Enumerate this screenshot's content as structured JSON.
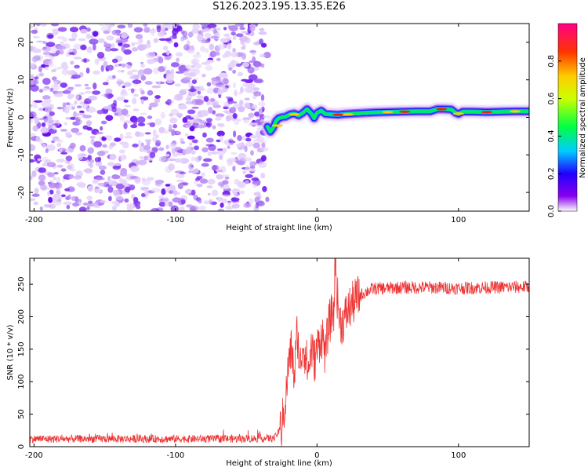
{
  "title": "S126.2023.195.13.35.E26",
  "chart_data": [
    {
      "type": "heatmap",
      "xlabel": "Height of straight line (km)",
      "ylabel": "Frequency (Hz)",
      "xlim": [
        -203,
        150
      ],
      "ylim": [
        -25,
        25
      ],
      "x_ticks": [
        -200,
        -100,
        0,
        100
      ],
      "y_ticks": [
        20,
        10,
        0,
        -10,
        -20
      ],
      "noise_region_x": [
        -203,
        -35
      ],
      "signal_ridge": {
        "x": [
          -35,
          -33,
          -31,
          -29,
          -27,
          -25,
          -22,
          -19,
          -16,
          -13,
          -10,
          -7,
          -4,
          -2,
          0,
          3,
          6,
          10,
          15,
          20,
          30,
          40,
          50,
          60,
          70,
          80,
          85,
          90,
          95,
          98,
          100,
          103,
          110,
          120,
          130,
          140,
          150
        ],
        "y": [
          -2.5,
          -3.8,
          -2.8,
          -1.0,
          -0.2,
          0.0,
          0.2,
          0.8,
          1.0,
          0.5,
          1.2,
          2.2,
          1.0,
          -0.2,
          1.2,
          1.8,
          0.9,
          0.8,
          0.7,
          0.9,
          1.1,
          1.3,
          1.4,
          1.5,
          1.6,
          1.6,
          2.2,
          2.2,
          2.1,
          1.2,
          0.9,
          1.5,
          1.5,
          1.4,
          1.5,
          1.6,
          1.6
        ]
      },
      "colorbar": {
        "label": "Normalized spectral amplitude",
        "range": [
          0.0,
          1.0
        ],
        "ticks": [
          0.0,
          0.2,
          0.4,
          0.6,
          0.8
        ],
        "tick_labels": [
          "0.0",
          "0.2",
          "0.4",
          "0.6",
          "0.8"
        ]
      }
    },
    {
      "type": "line",
      "xlabel": "Height of straight line (km)",
      "ylabel": "SNR (10 * v/v)",
      "xlim": [
        -203,
        150
      ],
      "ylim": [
        0,
        290
      ],
      "x_ticks": [
        -200,
        -100,
        0,
        100
      ],
      "y_ticks": [
        250,
        200,
        150,
        100,
        50,
        0
      ],
      "series_color": "#ee3333",
      "series": [
        {
          "x": [
            -203,
            -150,
            -100,
            -60,
            -30,
            -25,
            -22,
            -20,
            -18,
            -16,
            -14,
            -12,
            -10,
            -8,
            -6,
            -4,
            -2,
            0,
            2,
            4,
            6,
            8,
            10,
            12,
            13,
            14,
            16,
            18,
            20,
            22,
            25,
            28,
            32,
            36,
            40,
            50,
            60,
            80,
            100,
            120,
            150
          ],
          "y": [
            12,
            12,
            12,
            12,
            13,
            30,
            75,
            130,
            150,
            105,
            180,
            120,
            160,
            140,
            115,
            155,
            130,
            150,
            165,
            170,
            140,
            185,
            200,
            210,
            300,
            240,
            195,
            190,
            200,
            210,
            220,
            228,
            235,
            240,
            243,
            244,
            245,
            245,
            244,
            245,
            246
          ]
        }
      ]
    }
  ]
}
